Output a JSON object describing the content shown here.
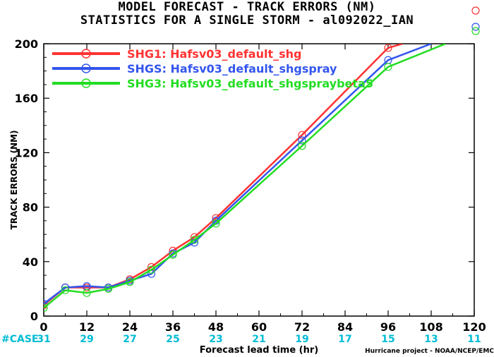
{
  "title_line1": "MODEL FORECAST - TRACK ERRORS (NM)",
  "title_line2": "STATISTICS FOR A SINGLE STORM - al092022_IAN",
  "credit": "Hurricane project - NOAA/NCEP/EMC",
  "case_label": "#CASE",
  "chart_data": {
    "type": "line",
    "xlabel": "Forecast lead time (hr)",
    "ylabel": "TRACK ERRORS (NM)",
    "xlim": [
      0,
      120
    ],
    "ylim": [
      0,
      200
    ],
    "x_ticks": [
      0,
      12,
      24,
      36,
      48,
      60,
      72,
      84,
      96,
      108,
      120
    ],
    "y_ticks": [
      0,
      40,
      80,
      120,
      160,
      200
    ],
    "grid": false,
    "legend_position": "top-left",
    "case_counts": [
      31,
      29,
      27,
      25,
      23,
      21,
      19,
      17,
      15,
      13,
      11
    ],
    "series": [
      {
        "name": "SHG1: Hafsv03_default_shg",
        "color": "#ff3333",
        "x": [
          0,
          6,
          12,
          18,
          24,
          30,
          36,
          42,
          48,
          72,
          96,
          100
        ],
        "y": [
          8,
          21,
          21,
          21,
          27,
          36,
          48,
          58,
          72,
          133,
          197,
          200
        ],
        "markers_x": [
          0,
          6,
          12,
          18,
          24,
          30,
          36,
          42,
          48,
          72,
          96
        ]
      },
      {
        "name": "SHGS: Hafsv03_default_shgspray",
        "color": "#3355ee",
        "x": [
          0,
          6,
          12,
          18,
          24,
          30,
          36,
          42,
          48,
          72,
          96,
          108
        ],
        "y": [
          9,
          21,
          22,
          21,
          26,
          31,
          46,
          54,
          70,
          129,
          188,
          200
        ],
        "markers_x": [
          0,
          6,
          12,
          18,
          24,
          30,
          36,
          42,
          48,
          72,
          96
        ]
      },
      {
        "name": "SHG3: Hafsv03_default_shgspraybeta5",
        "color": "#22dd22",
        "x": [
          0,
          6,
          12,
          18,
          24,
          30,
          36,
          42,
          48,
          72,
          96,
          112
        ],
        "y": [
          6,
          19,
          17,
          20,
          25,
          34,
          45,
          56,
          68,
          125,
          183,
          200
        ],
        "markers_x": [
          0,
          6,
          12,
          18,
          24,
          30,
          36,
          42,
          48,
          72,
          96
        ]
      }
    ]
  },
  "colors": {
    "case_label": "#00bcd4",
    "case_counts": "#00bcd4",
    "axis": "#000000"
  }
}
